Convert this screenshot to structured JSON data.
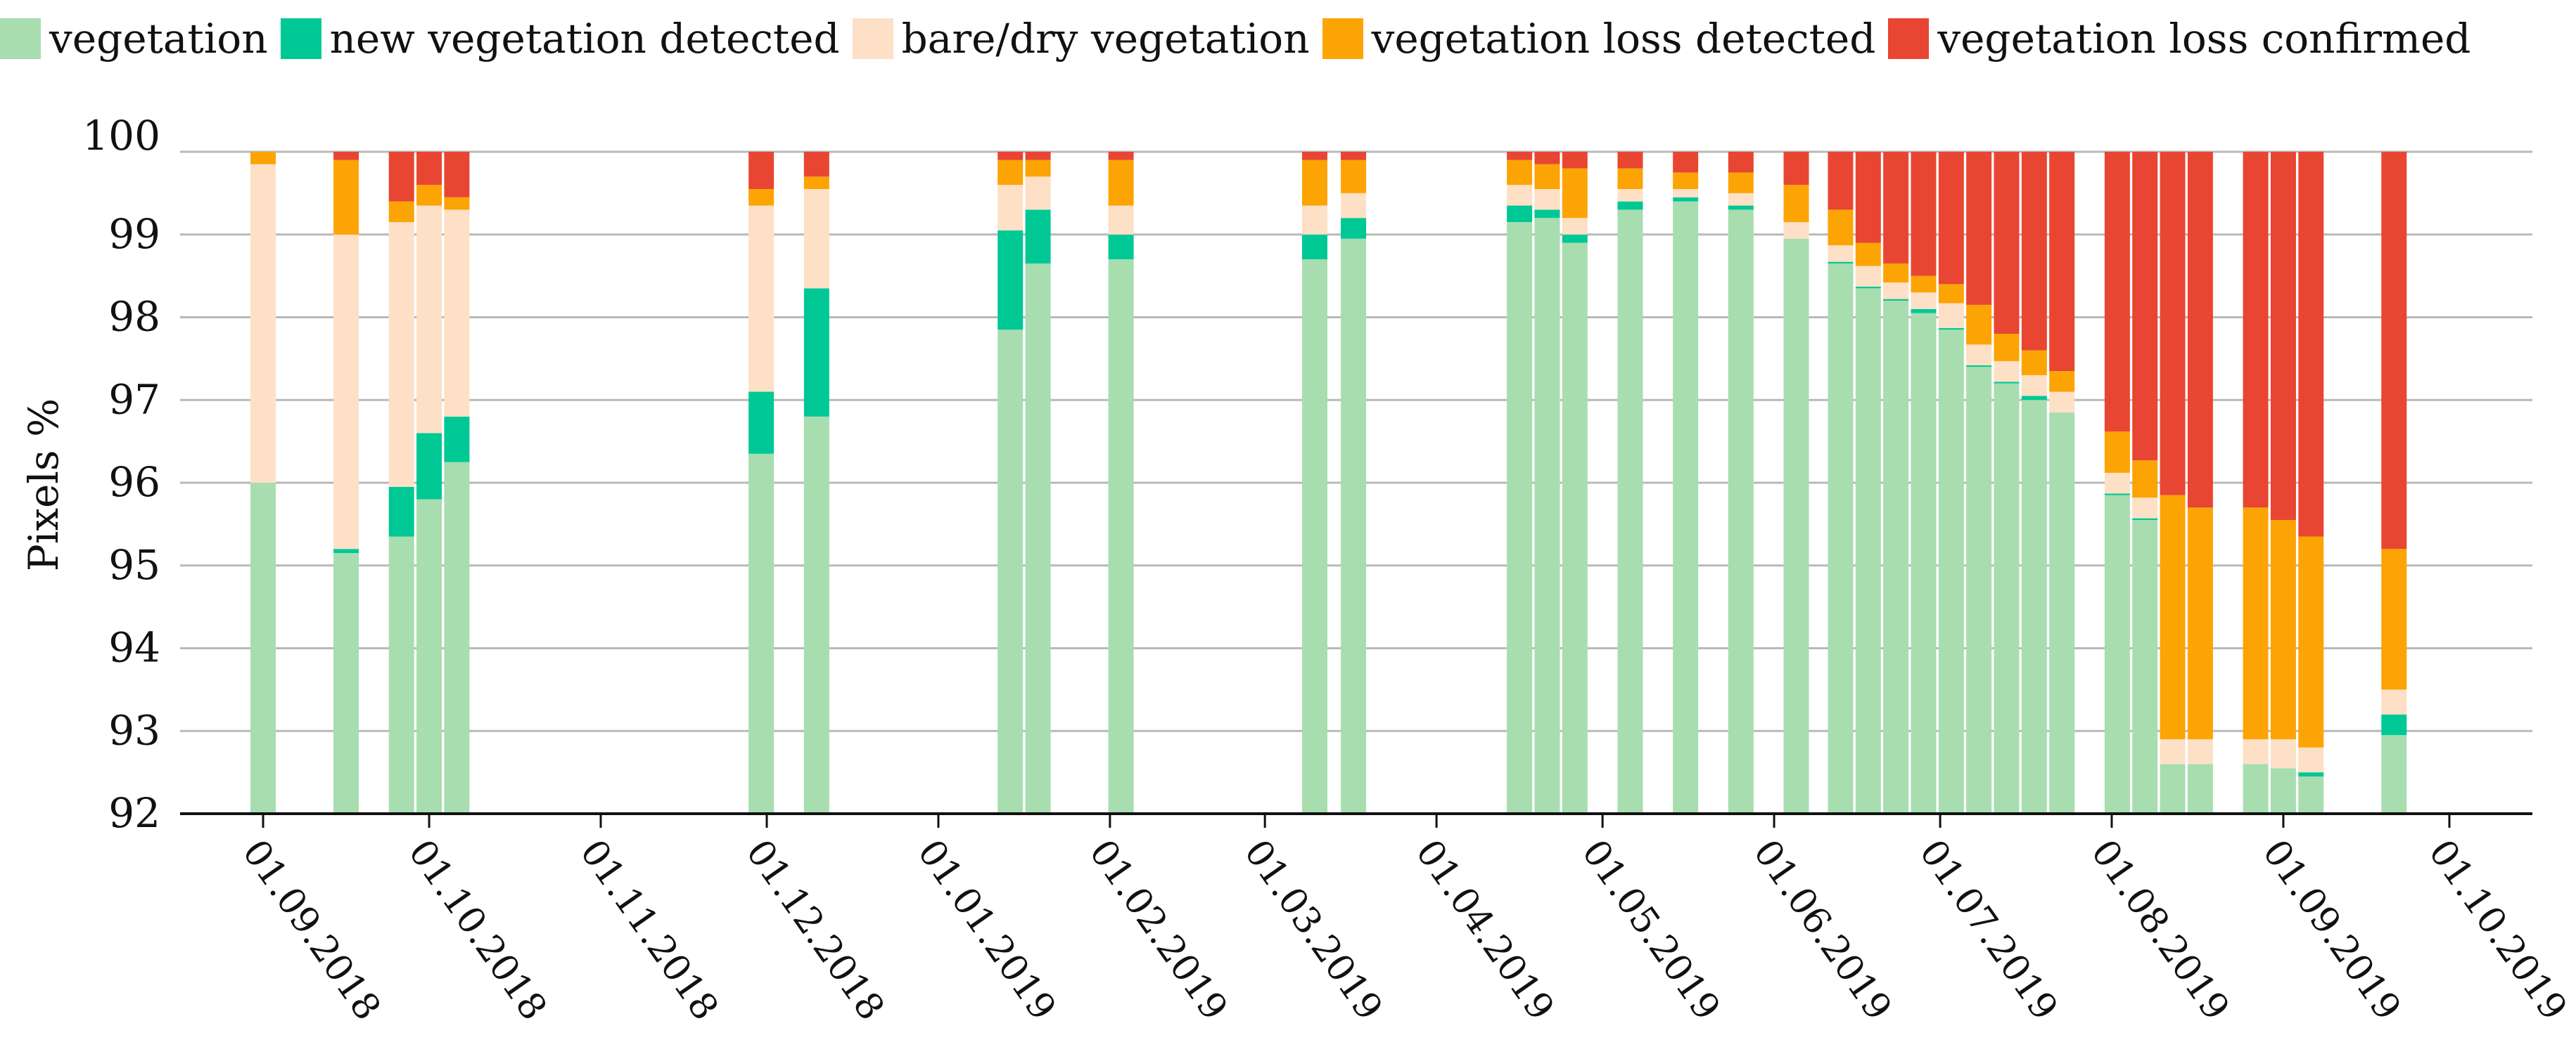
{
  "chart_data": {
    "type": "bar",
    "stacked": true,
    "title": "",
    "xlabel": "",
    "ylabel": "Pixels %",
    "ylim": [
      92,
      100
    ],
    "yticks": [
      92,
      93,
      94,
      95,
      96,
      97,
      98,
      99,
      100
    ],
    "grid": true,
    "legend_position": "top",
    "x_range": [
      "2018-08-17",
      "2019-10-16"
    ],
    "x_ticks": [
      {
        "date": "2018-09-01",
        "label": "01.09.2018"
      },
      {
        "date": "2018-10-01",
        "label": "01.10.2018"
      },
      {
        "date": "2018-11-01",
        "label": "01.11.2018"
      },
      {
        "date": "2018-12-01",
        "label": "01.12.2018"
      },
      {
        "date": "2019-01-01",
        "label": "01.01.2019"
      },
      {
        "date": "2019-02-01",
        "label": "01.02.2019"
      },
      {
        "date": "2019-03-01",
        "label": "01.03.2019"
      },
      {
        "date": "2019-04-01",
        "label": "01.04.2019"
      },
      {
        "date": "2019-05-01",
        "label": "01.05.2019"
      },
      {
        "date": "2019-06-01",
        "label": "01.06.2019"
      },
      {
        "date": "2019-07-01",
        "label": "01.07.2019"
      },
      {
        "date": "2019-08-01",
        "label": "01.08.2019"
      },
      {
        "date": "2019-09-01",
        "label": "01.09.2019"
      },
      {
        "date": "2019-10-01",
        "label": "01.10.2019"
      }
    ],
    "series": [
      {
        "name": "vegetation",
        "color": "#a8ddb0"
      },
      {
        "name": "new vegetation detected",
        "color": "#00c895"
      },
      {
        "name": "bare/dry vegetation",
        "color": "#fde0c6"
      },
      {
        "name": "vegetation loss detected",
        "color": "#fca404"
      },
      {
        "name": "vegetation loss confirmed",
        "color": "#e84632"
      }
    ],
    "bars": [
      {
        "date": "2018-09-01",
        "values": [
          4.0,
          0.0,
          3.85,
          0.15,
          0.0
        ]
      },
      {
        "date": "2018-09-16",
        "values": [
          3.15,
          0.05,
          3.8,
          0.9,
          0.1
        ]
      },
      {
        "date": "2018-09-26",
        "values": [
          3.35,
          0.6,
          3.2,
          0.25,
          0.6
        ]
      },
      {
        "date": "2018-10-01",
        "values": [
          3.8,
          0.8,
          2.75,
          0.25,
          0.4
        ]
      },
      {
        "date": "2018-10-06",
        "values": [
          4.25,
          0.55,
          2.5,
          0.15,
          0.55
        ]
      },
      {
        "date": "2018-11-30",
        "values": [
          4.35,
          0.75,
          2.25,
          0.2,
          0.45
        ]
      },
      {
        "date": "2018-12-10",
        "values": [
          4.8,
          1.55,
          1.2,
          0.15,
          0.3
        ]
      },
      {
        "date": "2019-01-14",
        "values": [
          5.85,
          1.2,
          0.55,
          0.3,
          0.1
        ]
      },
      {
        "date": "2019-01-19",
        "values": [
          6.65,
          0.65,
          0.4,
          0.2,
          0.1
        ]
      },
      {
        "date": "2019-02-03",
        "values": [
          6.7,
          0.3,
          0.35,
          0.55,
          0.1
        ]
      },
      {
        "date": "2019-03-10",
        "values": [
          6.7,
          0.3,
          0.35,
          0.55,
          0.1
        ]
      },
      {
        "date": "2019-03-17",
        "values": [
          6.95,
          0.25,
          0.3,
          0.4,
          0.1
        ]
      },
      {
        "date": "2019-04-16",
        "values": [
          7.15,
          0.2,
          0.25,
          0.3,
          0.1
        ]
      },
      {
        "date": "2019-04-21",
        "values": [
          7.2,
          0.1,
          0.25,
          0.3,
          0.15
        ]
      },
      {
        "date": "2019-04-26",
        "values": [
          6.9,
          0.1,
          0.2,
          0.6,
          0.2
        ]
      },
      {
        "date": "2019-05-06",
        "values": [
          7.3,
          0.1,
          0.15,
          0.25,
          0.2
        ]
      },
      {
        "date": "2019-05-16",
        "values": [
          7.4,
          0.05,
          0.1,
          0.2,
          0.25
        ]
      },
      {
        "date": "2019-05-26",
        "values": [
          7.3,
          0.05,
          0.15,
          0.25,
          0.25
        ]
      },
      {
        "date": "2019-06-05",
        "values": [
          6.95,
          0.0,
          0.2,
          0.45,
          0.4
        ]
      },
      {
        "date": "2019-06-13",
        "values": [
          6.65,
          0.02,
          0.2,
          0.43,
          0.7
        ]
      },
      {
        "date": "2019-06-18",
        "values": [
          6.35,
          0.02,
          0.25,
          0.28,
          1.1
        ]
      },
      {
        "date": "2019-06-23",
        "values": [
          6.2,
          0.02,
          0.2,
          0.23,
          1.35
        ]
      },
      {
        "date": "2019-06-28",
        "values": [
          6.05,
          0.05,
          0.2,
          0.2,
          1.5
        ]
      },
      {
        "date": "2019-07-03",
        "values": [
          5.85,
          0.02,
          0.3,
          0.23,
          1.6
        ]
      },
      {
        "date": "2019-07-08",
        "values": [
          5.4,
          0.02,
          0.25,
          0.48,
          1.85
        ]
      },
      {
        "date": "2019-07-13",
        "values": [
          5.2,
          0.02,
          0.25,
          0.33,
          2.2
        ]
      },
      {
        "date": "2019-07-18",
        "values": [
          5.0,
          0.05,
          0.25,
          0.3,
          2.4
        ]
      },
      {
        "date": "2019-07-23",
        "values": [
          4.85,
          0.0,
          0.25,
          0.25,
          2.65
        ]
      },
      {
        "date": "2019-08-02",
        "values": [
          3.85,
          0.02,
          0.25,
          0.5,
          3.38
        ]
      },
      {
        "date": "2019-08-07",
        "values": [
          3.55,
          0.02,
          0.25,
          0.45,
          3.73
        ]
      },
      {
        "date": "2019-08-12",
        "values": [
          0.6,
          0.0,
          0.3,
          2.95,
          4.15
        ]
      },
      {
        "date": "2019-08-17",
        "values": [
          0.6,
          0.0,
          0.3,
          2.8,
          4.3
        ]
      },
      {
        "date": "2019-08-27",
        "values": [
          0.6,
          0.0,
          0.3,
          2.8,
          4.3
        ]
      },
      {
        "date": "2019-09-01",
        "values": [
          0.55,
          0.0,
          0.35,
          2.65,
          4.45
        ]
      },
      {
        "date": "2019-09-06",
        "values": [
          0.45,
          0.05,
          0.3,
          2.55,
          4.65
        ]
      },
      {
        "date": "2019-09-21",
        "values": [
          0.95,
          0.25,
          0.3,
          1.7,
          4.8
        ]
      }
    ]
  }
}
